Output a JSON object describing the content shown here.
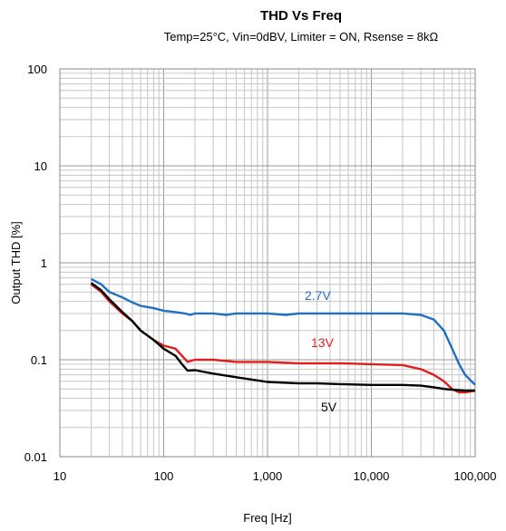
{
  "chart_data": {
    "type": "line",
    "title": "THD Vs Freq",
    "subtitle": "Temp=25°C, Vin=0dBV, Limiter = ON, Rsense = 8kΩ",
    "xlabel": "Freq [Hz]",
    "ylabel": "Output THD [%]",
    "x_scale": "log",
    "y_scale": "log",
    "xlim": [
      10,
      100000
    ],
    "ylim": [
      0.01,
      100
    ],
    "grid": true,
    "x_ticks": [
      10,
      100,
      1000,
      10000,
      100000
    ],
    "x_tick_labels": [
      "10",
      "100",
      "1,000",
      "10,000",
      "100,000"
    ],
    "y_ticks": [
      100,
      10,
      1,
      0.1,
      0.01
    ],
    "y_tick_labels": [
      "100",
      "10",
      "1",
      "0.1",
      "0.01"
    ],
    "series": [
      {
        "name": "2.7V",
        "color": "#1f6fc4",
        "x": [
          20,
          25,
          30,
          40,
          50,
          60,
          80,
          100,
          130,
          160,
          180,
          200,
          300,
          400,
          500,
          1000,
          1500,
          2000,
          3000,
          5000,
          10000,
          20000,
          30000,
          40000,
          50000,
          60000,
          70000,
          80000,
          100000
        ],
        "y": [
          0.68,
          0.6,
          0.5,
          0.44,
          0.39,
          0.36,
          0.34,
          0.32,
          0.31,
          0.3,
          0.29,
          0.3,
          0.3,
          0.29,
          0.3,
          0.3,
          0.29,
          0.3,
          0.3,
          0.3,
          0.3,
          0.3,
          0.29,
          0.26,
          0.2,
          0.13,
          0.09,
          0.07,
          0.055
        ]
      },
      {
        "name": "13V",
        "color": "#e01e1e",
        "x": [
          20,
          25,
          30,
          40,
          50,
          60,
          80,
          100,
          130,
          150,
          170,
          200,
          300,
          500,
          1000,
          2000,
          5000,
          10000,
          20000,
          30000,
          40000,
          50000,
          60000,
          70000,
          80000,
          100000
        ],
        "y": [
          0.6,
          0.5,
          0.4,
          0.3,
          0.25,
          0.2,
          0.16,
          0.14,
          0.13,
          0.11,
          0.095,
          0.1,
          0.1,
          0.095,
          0.095,
          0.092,
          0.092,
          0.09,
          0.088,
          0.08,
          0.07,
          0.06,
          0.05,
          0.046,
          0.046,
          0.048
        ]
      },
      {
        "name": "5V",
        "color": "#000000",
        "x": [
          20,
          25,
          30,
          40,
          50,
          60,
          80,
          100,
          130,
          150,
          170,
          200,
          300,
          500,
          1000,
          2000,
          3000,
          5000,
          10000,
          20000,
          30000,
          40000,
          50000,
          60000,
          80000,
          100000
        ],
        "y": [
          0.62,
          0.52,
          0.42,
          0.31,
          0.25,
          0.2,
          0.16,
          0.13,
          0.11,
          0.09,
          0.077,
          0.078,
          0.072,
          0.066,
          0.059,
          0.057,
          0.057,
          0.056,
          0.055,
          0.055,
          0.054,
          0.052,
          0.05,
          0.049,
          0.048,
          0.048
        ]
      }
    ]
  }
}
